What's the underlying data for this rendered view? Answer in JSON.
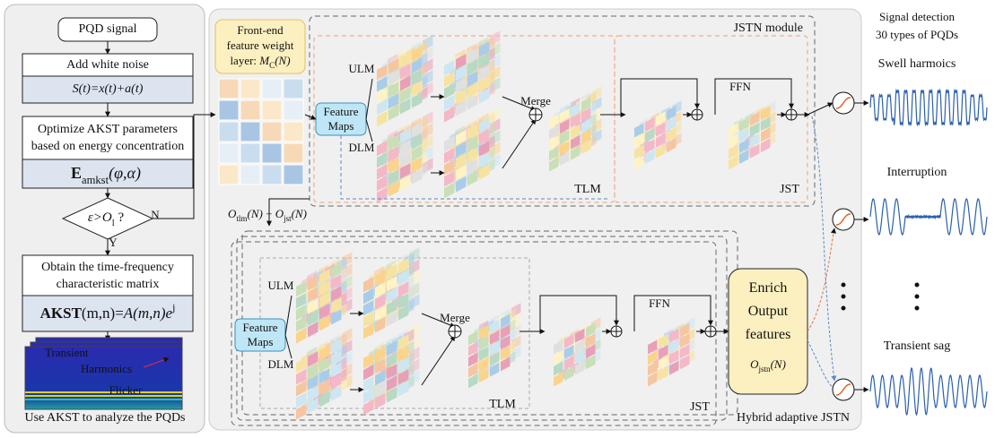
{
  "left_panel": {
    "start": "PQD  signal",
    "step1": "Add white noise",
    "eq1": "S(t)=x(t)+a(t)",
    "step2": [
      "Optimize AKST parameters",
      "based on energy concentration"
    ],
    "eq2": {
      "main": "E",
      "sub": "amkst",
      "rest": "(φ,α)"
    },
    "decision": {
      "lhs": "ε>O",
      "sub": "l",
      "rest": " ?"
    },
    "no": "N",
    "yes": "Y",
    "step3": [
      "Obtain the time-frequency",
      "characteristic matrix"
    ],
    "eq3": {
      "main": "AKST",
      "mid": "(m,n)=",
      "rest": "A(m,n)e",
      "sup": "j"
    },
    "spectrum_labels": [
      "Transient",
      "Harmonics",
      "Flicker"
    ],
    "caption": "Use AKST to analyze the PQDs"
  },
  "middle_panel": {
    "weight_layer": {
      "lines": [
        "Front-end",
        "feature weight"
      ],
      "layer": "layer: ",
      "symbol": "M",
      "sub": "C",
      "arg": "(N)"
    },
    "jstn": {
      "title": "JSTN module",
      "ulm": "ULM",
      "dlm": "DLM",
      "feature_maps": [
        "Feature",
        "Maps"
      ],
      "merge": "Merge",
      "ffn": "FFN",
      "tlm": "TLM",
      "jst": "JST"
    },
    "sum": {
      "a": "O",
      "a_sub": "tlm",
      "a_arg": "(N)",
      "plus": " + ",
      "b": "O",
      "b_sub": "jst",
      "b_arg": "(N)"
    },
    "hybrid": {
      "title": "Hybrid adaptive JSTN",
      "ulm": "ULM",
      "dlm": "DLM",
      "feature_maps": [
        "Feature",
        "Maps"
      ],
      "merge": "Merge",
      "ffn": "FFN",
      "tlm": "TLM",
      "jst": "JST",
      "output": {
        "lines": [
          "Enrich",
          "Output",
          "features"
        ],
        "symbol": "O",
        "sub": "jstn",
        "arg": "(N)"
      }
    }
  },
  "right_panel": {
    "title": [
      "Signal detection",
      "30 types of PQDs"
    ],
    "signals": [
      "Swell harmoics",
      "Interruption",
      "Transient sag"
    ]
  }
}
